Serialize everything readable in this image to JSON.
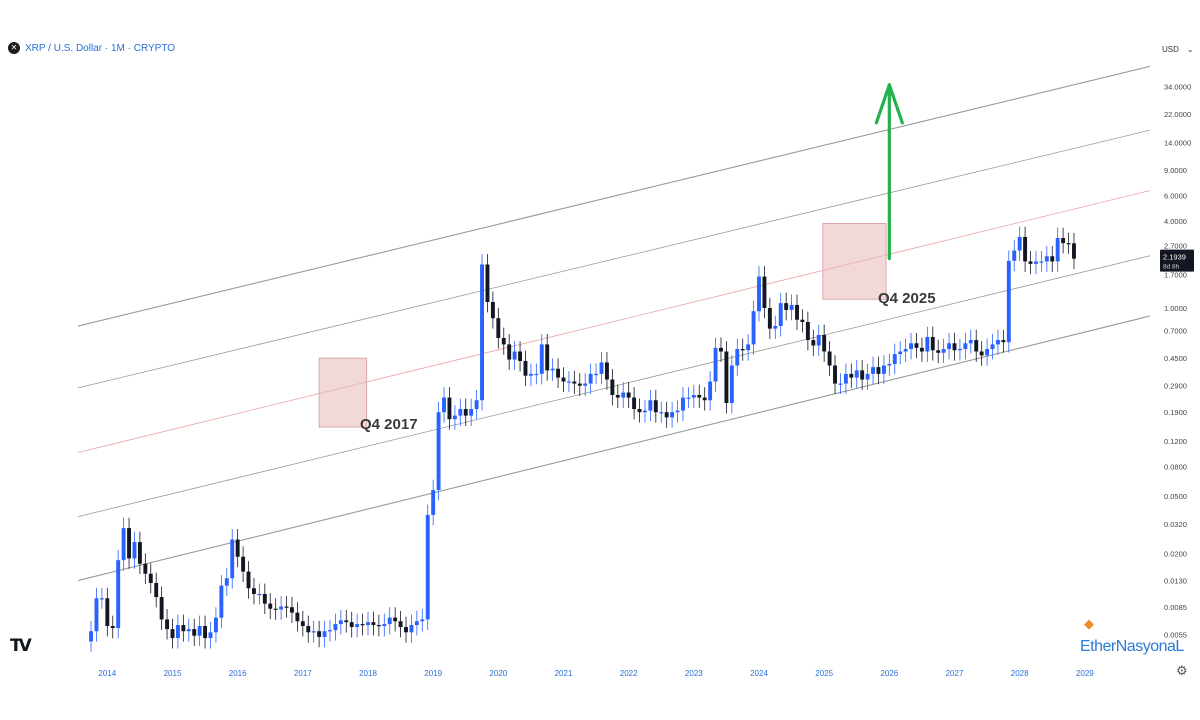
{
  "header": {
    "symbol_icon": "x-circle-icon",
    "title": "XRP / U.S. Dollar · 1M · CRYPTO"
  },
  "currency_selector": {
    "label": "USD",
    "icon": "chevron-down-icon"
  },
  "branding": {
    "tv_logo": "TV",
    "watermark": "EtherNasyonaL",
    "watermark_icon": "fox-icon",
    "settings_icon": "gear-icon"
  },
  "colors": {
    "up_candle": "#2962ff",
    "down_candle": "#131722",
    "channel_line": "#9a9a9a",
    "median_line": "#e8a2a2",
    "highlight_box": "#e8b8b8",
    "target_arrow": "#22b14c",
    "price_label_bg": "#131722"
  },
  "chart_data": {
    "type": "candlestick",
    "title": "XRP / U.S. Dollar · 1M · CRYPTO",
    "y_scale": "log",
    "y_tick_labels": [
      "34.0000",
      "22.0000",
      "14.0000",
      "9.0000",
      "6.0000",
      "4.0000",
      "2.7000",
      "1.7000",
      "1.0000",
      "0.7000",
      "0.4500",
      "0.2900",
      "0.1900",
      "0.1200",
      "0.0800",
      "0.0500",
      "0.0320",
      "0.0200",
      "0.0130",
      "0.0085",
      "0.0055"
    ],
    "y_tick_values": [
      34,
      22,
      14,
      9,
      6,
      4,
      2.7,
      1.7,
      1.0,
      0.7,
      0.45,
      0.29,
      0.19,
      0.12,
      0.08,
      0.05,
      0.032,
      0.02,
      0.013,
      0.0085,
      0.0055
    ],
    "x_tick_labels": [
      "2014",
      "2015",
      "2016",
      "2017",
      "2018",
      "2019",
      "2020",
      "2021",
      "2022",
      "2023",
      "2024",
      "2025",
      "2026",
      "2027",
      "2028",
      "2029"
    ],
    "x_tick_values": [
      2014,
      2015,
      2016,
      2017,
      2018,
      2019,
      2020,
      2021,
      2022,
      2023,
      2024,
      2025,
      2026,
      2027,
      2028,
      2029
    ],
    "x_range": [
      2013.55,
      2030.0
    ],
    "y_range": [
      0.0043,
      52
    ],
    "last_price": {
      "value": 2.1939,
      "label": "2.1939",
      "countdown": "8d 8h"
    },
    "closes": [
      0.0058,
      0.0098,
      0.0098,
      0.0063,
      0.0061,
      0.018,
      0.03,
      0.0185,
      0.024,
      0.017,
      0.0145,
      0.0125,
      0.01,
      0.007,
      0.006,
      0.0052,
      0.0064,
      0.0058,
      0.006,
      0.0054,
      0.0063,
      0.0052,
      0.0057,
      0.0072,
      0.012,
      0.0135,
      0.025,
      0.019,
      0.015,
      0.0115,
      0.0105,
      0.0105,
      0.009,
      0.0083,
      0.0082,
      0.0086,
      0.0085,
      0.0078,
      0.0068,
      0.0063,
      0.0057,
      0.0058,
      0.0053,
      0.0058,
      0.0059,
      0.0065,
      0.0069,
      0.0067,
      0.0062,
      0.0065,
      0.0064,
      0.0067,
      0.0064,
      0.0063,
      0.0065,
      0.0072,
      0.0068,
      0.0062,
      0.0057,
      0.0064,
      0.0068,
      0.007,
      0.037,
      0.055,
      0.19,
      0.24,
      0.17,
      0.18,
      0.2,
      0.18,
      0.2,
      0.23,
      2.0,
      1.1,
      0.85,
      0.62,
      0.56,
      0.44,
      0.5,
      0.43,
      0.34,
      0.35,
      0.35,
      0.56,
      0.37,
      0.38,
      0.33,
      0.31,
      0.31,
      0.3,
      0.29,
      0.3,
      0.35,
      0.35,
      0.42,
      0.32,
      0.25,
      0.24,
      0.26,
      0.24,
      0.2,
      0.19,
      0.195,
      0.23,
      0.19,
      0.19,
      0.175,
      0.19,
      0.195,
      0.24,
      0.24,
      0.25,
      0.24,
      0.23,
      0.31,
      0.53,
      0.5,
      0.22,
      0.4,
      0.52,
      0.51,
      0.56,
      0.95,
      1.65,
      1.0,
      0.72,
      0.75,
      1.08,
      0.97,
      1.05,
      0.83,
      0.8,
      0.6,
      0.55,
      0.65,
      0.5,
      0.4,
      0.3,
      0.3,
      0.35,
      0.33,
      0.37,
      0.32,
      0.35,
      0.39,
      0.35,
      0.4,
      0.41,
      0.48,
      0.5,
      0.52,
      0.57,
      0.53,
      0.5,
      0.63,
      0.51,
      0.49,
      0.52,
      0.57,
      0.51,
      0.52,
      0.57,
      0.6,
      0.5,
      0.47,
      0.52,
      0.56,
      0.6,
      0.58,
      2.12,
      2.5,
      3.1,
      2.1,
      2.02,
      2.1,
      2.1,
      2.28,
      2.1,
      3.05,
      2.81,
      2.8,
      2.1939
    ],
    "annotations": [
      {
        "label": "Q4 2017",
        "kind": "highlight_box",
        "x_range": [
          2017.25,
          2017.98
        ],
        "y_range": [
          0.15,
          0.45
        ]
      },
      {
        "label": "Q4 2025",
        "kind": "highlight_box",
        "x_range": [
          2024.98,
          2025.95
        ],
        "y_range": [
          1.15,
          3.85
        ]
      },
      {
        "label": "",
        "kind": "target_arrow",
        "x": 2026.0,
        "from": 2.2,
        "to": 35
      }
    ],
    "channel": {
      "x": [
        2013.55,
        2030.0
      ],
      "lines": [
        {
          "role": "upper",
          "y": [
            0.75,
            47.0
          ]
        },
        {
          "role": "inner",
          "y": [
            0.28,
            17.0
          ]
        },
        {
          "role": "median",
          "y": [
            0.1,
            6.5
          ]
        },
        {
          "role": "inner",
          "y": [
            0.036,
            2.3
          ]
        },
        {
          "role": "lower",
          "y": [
            0.013,
            0.88
          ]
        }
      ]
    },
    "grid": false,
    "legend": "none"
  }
}
